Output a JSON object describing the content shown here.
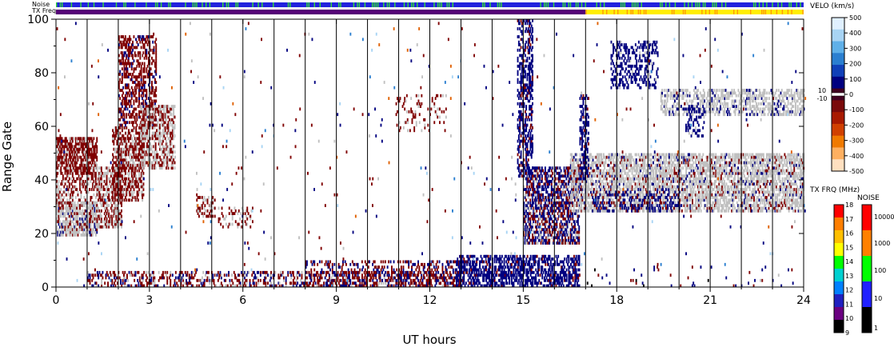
{
  "chart_data": {
    "type": "heatmap",
    "title": "",
    "xlabel": "UT hours",
    "ylabel": "Range Gate",
    "xlim": [
      0,
      24
    ],
    "ylim": [
      0,
      100
    ],
    "x_ticks": [
      "0",
      "3",
      "6",
      "9",
      "12",
      "15",
      "18",
      "21",
      "24"
    ],
    "y_ticks": [
      "0",
      "20",
      "40",
      "60",
      "80",
      "100"
    ],
    "scan_boundaries_ut": [
      1,
      2,
      3,
      4,
      5,
      6,
      7,
      8,
      9,
      10,
      11,
      12,
      13,
      14,
      15,
      16,
      17,
      18,
      19,
      20,
      21,
      22,
      23
    ],
    "ground_scatter_color": "#c0c0c0",
    "top_strips": {
      "noise_label": "Noise",
      "txfreq_label": "TX Freq",
      "noise_segments": [
        {
          "from": 0,
          "to": 24,
          "color": "#2222dd",
          "with_green_flecks": true
        }
      ],
      "txfreq_segments": [
        {
          "from": 0,
          "to": 17,
          "color": "#550077"
        },
        {
          "from": 17,
          "to": 24,
          "color": "#ffee00",
          "with_orange_flecks": true
        }
      ]
    },
    "velocity_colorbar": {
      "title": "VELO (km/s)",
      "ticks": [
        "500",
        "400",
        "300",
        "200",
        "100",
        "0",
        "-100",
        "-200",
        "-300",
        "-400",
        "-500"
      ],
      "center_labels": [
        "10",
        "-10"
      ],
      "range": [
        -500,
        500
      ],
      "colors_top_to_bottom": [
        "#e0f0ff",
        "#a8d4f4",
        "#5fb0e8",
        "#2b7fd0",
        "#1040b8",
        "#000080",
        "#400020",
        "#7a0a0a",
        "#a81a00",
        "#d04000",
        "#f07a00",
        "#ffb060",
        "#ffe0c0"
      ]
    },
    "txfreq_colorbar": {
      "title": "TX FRQ (MHz)",
      "ticks": [
        "18",
        "17",
        "16",
        "15",
        "14",
        "13",
        "12",
        "11",
        "10",
        "9"
      ],
      "colors_top_to_bottom": [
        "#ff0000",
        "#ff7f00",
        "#ffbf00",
        "#ffff00",
        "#00ff00",
        "#00d0d0",
        "#0080ff",
        "#2020c0",
        "#6a0080",
        "#000000"
      ]
    },
    "noise_colorbar": {
      "title": "NOISE",
      "ticks": [
        "10000",
        "1000",
        "100",
        "10",
        "1"
      ],
      "colors_top_to_bottom": [
        "#ff0000",
        "#ff8000",
        "#00ff00",
        "#2020ff",
        "#000000"
      ]
    },
    "regions": [
      {
        "t0": 0.0,
        "t1": 1.3,
        "g0": 19,
        "g1": 32,
        "density": 0.7,
        "mix": [
          [
            "#c0c0c0",
            0.7
          ],
          [
            "#800000",
            0.2
          ],
          [
            "#000080",
            0.1
          ]
        ]
      },
      {
        "t0": 0.0,
        "t1": 1.3,
        "g0": 42,
        "g1": 56,
        "density": 0.7,
        "mix": [
          [
            "#800000",
            0.8
          ],
          [
            "#c0c0c0",
            0.2
          ]
        ]
      },
      {
        "t0": 0.0,
        "t1": 1.3,
        "g0": 30,
        "g1": 42,
        "density": 0.35,
        "mix": [
          [
            "#800000",
            0.6
          ],
          [
            "#c0c0c0",
            0.4
          ]
        ]
      },
      {
        "t0": 1.3,
        "t1": 2.1,
        "g0": 22,
        "g1": 45,
        "density": 0.55,
        "mix": [
          [
            "#c0c0c0",
            0.5
          ],
          [
            "#800000",
            0.5
          ]
        ]
      },
      {
        "t0": 1.8,
        "t1": 2.8,
        "g0": 32,
        "g1": 60,
        "density": 0.6,
        "mix": [
          [
            "#800000",
            0.7
          ],
          [
            "#c0c0c0",
            0.3
          ]
        ]
      },
      {
        "t0": 2.0,
        "t1": 3.2,
        "g0": 60,
        "g1": 94,
        "density": 0.45,
        "mix": [
          [
            "#800000",
            0.85
          ],
          [
            "#000080",
            0.15
          ]
        ]
      },
      {
        "t0": 2.7,
        "t1": 3.8,
        "g0": 44,
        "g1": 68,
        "density": 0.55,
        "mix": [
          [
            "#c0c0c0",
            0.55
          ],
          [
            "#800000",
            0.45
          ]
        ]
      },
      {
        "t0": 4.5,
        "t1": 5.1,
        "g0": 26,
        "g1": 34,
        "density": 0.35,
        "mix": [
          [
            "#800000",
            0.6
          ],
          [
            "#c0c0c0",
            0.4
          ]
        ]
      },
      {
        "t0": 5.2,
        "t1": 6.3,
        "g0": 22,
        "g1": 30,
        "density": 0.18,
        "mix": [
          [
            "#800000",
            0.6
          ],
          [
            "#c0c0c0",
            0.4
          ]
        ]
      },
      {
        "t0": 1.0,
        "t1": 13.0,
        "g0": 0,
        "g1": 6,
        "density": 0.35,
        "mix": [
          [
            "#800000",
            0.55
          ],
          [
            "#000080",
            0.3
          ],
          [
            "#c0c0c0",
            0.15
          ]
        ]
      },
      {
        "t0": 8.0,
        "t1": 13.0,
        "g0": 0,
        "g1": 10,
        "density": 0.25,
        "mix": [
          [
            "#800000",
            0.6
          ],
          [
            "#000080",
            0.4
          ]
        ]
      },
      {
        "t0": 12.8,
        "t1": 16.8,
        "g0": 0,
        "g1": 12,
        "density": 0.55,
        "mix": [
          [
            "#000080",
            0.9
          ],
          [
            "#800000",
            0.1
          ]
        ]
      },
      {
        "t0": 10.9,
        "t1": 12.5,
        "g0": 58,
        "g1": 72,
        "density": 0.12,
        "mix": [
          [
            "#800000",
            0.7
          ],
          [
            "#c0c0c0",
            0.3
          ]
        ]
      },
      {
        "t0": 14.8,
        "t1": 15.3,
        "g0": 40,
        "g1": 100,
        "density": 0.45,
        "mix": [
          [
            "#000080",
            0.85
          ],
          [
            "#800000",
            0.15
          ]
        ]
      },
      {
        "t0": 15.0,
        "t1": 16.8,
        "g0": 16,
        "g1": 45,
        "density": 0.6,
        "mix": [
          [
            "#000080",
            0.5
          ],
          [
            "#800000",
            0.3
          ],
          [
            "#c0c0c0",
            0.2
          ]
        ]
      },
      {
        "t0": 16.5,
        "t1": 24.0,
        "g0": 28,
        "g1": 50,
        "density": 0.6,
        "mix": [
          [
            "#c0c0c0",
            0.8
          ],
          [
            "#800000",
            0.12
          ],
          [
            "#000080",
            0.08
          ]
        ]
      },
      {
        "t0": 17.2,
        "t1": 20.0,
        "g0": 28,
        "g1": 36,
        "density": 0.25,
        "mix": [
          [
            "#000080",
            0.8
          ],
          [
            "#800000",
            0.2
          ]
        ]
      },
      {
        "t0": 16.8,
        "t1": 17.1,
        "g0": 40,
        "g1": 72,
        "density": 0.45,
        "mix": [
          [
            "#000080",
            0.9
          ],
          [
            "#800000",
            0.1
          ]
        ]
      },
      {
        "t0": 17.8,
        "t1": 19.3,
        "g0": 74,
        "g1": 92,
        "density": 0.35,
        "mix": [
          [
            "#000080",
            0.9
          ],
          [
            "#c0c0c0",
            0.1
          ]
        ]
      },
      {
        "t0": 19.4,
        "t1": 24.0,
        "g0": 64,
        "g1": 74,
        "density": 0.45,
        "mix": [
          [
            "#c0c0c0",
            0.85
          ],
          [
            "#000080",
            0.15
          ]
        ]
      },
      {
        "t0": 20.2,
        "t1": 20.8,
        "g0": 56,
        "g1": 68,
        "density": 0.35,
        "mix": [
          [
            "#000080",
            0.9
          ],
          [
            "#c0c0c0",
            0.1
          ]
        ]
      },
      {
        "t0": 16.8,
        "t1": 24.0,
        "g0": 0,
        "g1": 8,
        "density": 0.03,
        "mix": [
          [
            "#000080",
            0.5
          ],
          [
            "#800000",
            0.3
          ],
          [
            "#000000",
            0.2
          ]
        ]
      }
    ],
    "background_noise": {
      "density": 0.011,
      "mix": [
        [
          "#800000",
          0.3
        ],
        [
          "#000080",
          0.3
        ],
        [
          "#c0c0c0",
          0.15
        ],
        [
          "#2b7fd0",
          0.1
        ],
        [
          "#e06000",
          0.07
        ],
        [
          "#a8d4f4",
          0.08
        ]
      ]
    }
  }
}
